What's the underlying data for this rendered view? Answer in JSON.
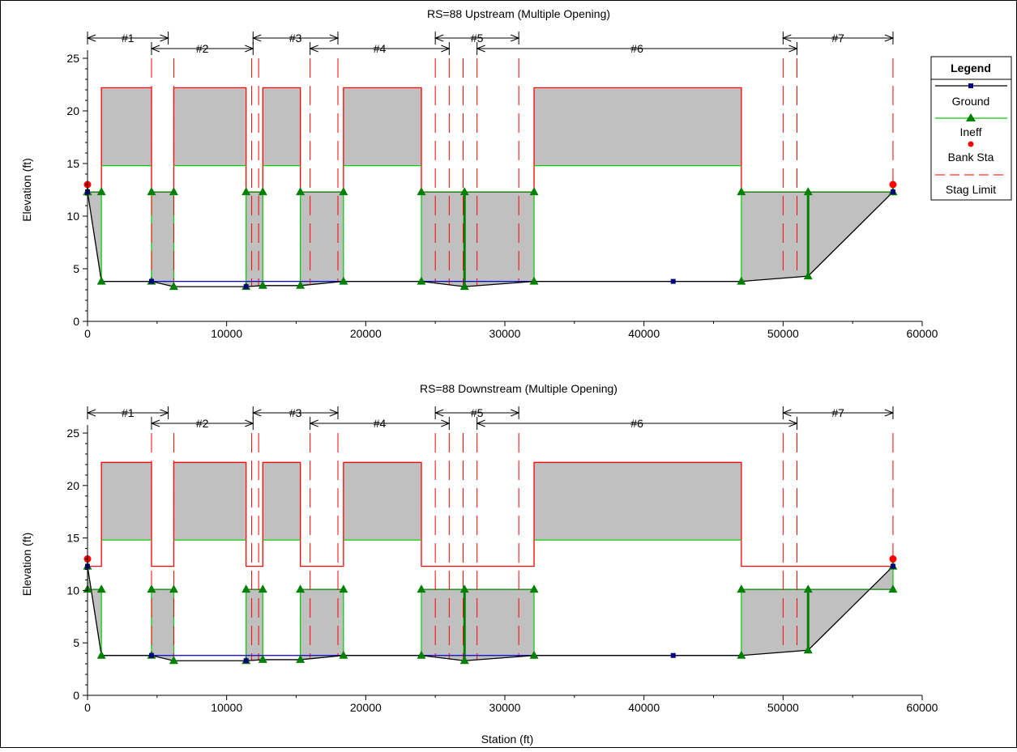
{
  "xlabel": "Station (ft)",
  "legend": {
    "title": "Legend",
    "entries": [
      "Ground",
      "Ineff",
      "Bank Sta",
      "Stag Limit"
    ]
  },
  "colors": {
    "ground": "#000000",
    "ground_marker": "#000080",
    "water_line": "#0000cc",
    "ineff": "#00cc00",
    "ineff_marker": "#008000",
    "bank": "#ff0000",
    "stag_limit": "#ff0000",
    "deck": "#ff0000",
    "fill": "#c0c0c0"
  },
  "chart_data": [
    {
      "type": "line",
      "title": "RS=88     Upstream  (Multiple Opening)",
      "ylabel": "Elevation (ft)",
      "xlim": [
        0,
        60000
      ],
      "ylim": [
        0,
        25
      ],
      "x_ticks": [
        0,
        10000,
        20000,
        30000,
        40000,
        50000,
        60000
      ],
      "y_ticks": [
        0,
        5,
        10,
        15,
        20,
        25
      ],
      "deck_high": 22.2,
      "deck_low_chord": 14.8,
      "ground": {
        "x": [
          0,
          1000,
          4600,
          6200,
          11400,
          12600,
          15300,
          18400,
          24000,
          27100,
          32100,
          42100,
          47000,
          51800,
          57900
        ],
        "y": [
          12.3,
          3.8,
          3.8,
          3.3,
          3.3,
          3.4,
          3.4,
          3.8,
          3.8,
          3.3,
          3.8,
          3.8,
          3.8,
          4.3,
          12.3
        ]
      },
      "ground_markers": [
        0,
        4600,
        11400,
        42100,
        57900
      ],
      "water_line": {
        "x": [
          1000,
          47000
        ],
        "y": 3.8
      },
      "deck_segments": [
        [
          1000,
          4600
        ],
        [
          6200,
          11400
        ],
        [
          12600,
          15300
        ],
        [
          18400,
          24000
        ],
        [
          32100,
          47000
        ]
      ],
      "ineff_level": 12.3,
      "ineff_stations": [
        0,
        1000,
        4600,
        6200,
        11400,
        12600,
        15300,
        18400,
        24000,
        27100,
        32100,
        47000,
        51800,
        57900
      ],
      "piers": [
        27100,
        51800
      ],
      "bank_stations": [
        {
          "x": 0,
          "y": 13.0
        },
        {
          "x": 57900,
          "y": 13.0
        }
      ],
      "stag_limits": [
        4600,
        6200,
        11800,
        12300,
        16000,
        18000,
        25000,
        26000,
        27000,
        28000,
        31000,
        50000,
        51000,
        57900
      ],
      "openings": [
        {
          "label": "#1",
          "x0": 0,
          "x1": 5800,
          "row": 1
        },
        {
          "label": "#2",
          "x0": 4600,
          "x1": 11900,
          "row": 2
        },
        {
          "label": "#3",
          "x0": 11900,
          "x1": 18000,
          "row": 1
        },
        {
          "label": "#4",
          "x0": 16000,
          "x1": 26000,
          "row": 2
        },
        {
          "label": "#5",
          "x0": 25000,
          "x1": 31000,
          "row": 1
        },
        {
          "label": "#6",
          "x0": 28000,
          "x1": 51000,
          "row": 2
        },
        {
          "label": "#7",
          "x0": 50000,
          "x1": 57900,
          "row": 1
        }
      ]
    },
    {
      "type": "line",
      "title": "RS=88     Downstream  (Multiple Opening)",
      "ylabel": "Elevation (ft)",
      "xlim": [
        0,
        60000
      ],
      "ylim": [
        0,
        25
      ],
      "x_ticks": [
        0,
        10000,
        20000,
        30000,
        40000,
        50000,
        60000
      ],
      "y_ticks": [
        0,
        5,
        10,
        15,
        20,
        25
      ],
      "deck_high": 22.2,
      "deck_low_chord": 14.8,
      "ground": {
        "x": [
          0,
          1000,
          4600,
          6200,
          11400,
          12600,
          15300,
          18400,
          24000,
          27100,
          32100,
          42100,
          47000,
          51800,
          57900
        ],
        "y": [
          12.3,
          3.8,
          3.8,
          3.3,
          3.3,
          3.4,
          3.4,
          3.8,
          3.8,
          3.3,
          3.8,
          3.8,
          3.8,
          4.3,
          12.3
        ]
      },
      "ground_markers": [
        0,
        4600,
        11400,
        42100,
        57900
      ],
      "water_line": {
        "x": [
          1000,
          47000
        ],
        "y": 3.8
      },
      "deck_segments": [
        [
          1000,
          4600
        ],
        [
          6200,
          11400
        ],
        [
          12600,
          15300
        ],
        [
          18400,
          24000
        ],
        [
          32100,
          47000
        ]
      ],
      "ineff_level": 10.1,
      "ineff_stations": [
        0,
        1000,
        4600,
        6200,
        11400,
        12600,
        15300,
        18400,
        24000,
        27100,
        32100,
        47000,
        51800,
        57900
      ],
      "piers": [
        27100,
        51800
      ],
      "bank_stations": [
        {
          "x": 0,
          "y": 13.0
        },
        {
          "x": 57900,
          "y": 13.0
        }
      ],
      "stag_limits": [
        4600,
        6200,
        11800,
        12300,
        16000,
        18000,
        25000,
        26000,
        27000,
        28000,
        31000,
        50000,
        51000,
        57900
      ],
      "openings": [
        {
          "label": "#1",
          "x0": 0,
          "x1": 5800,
          "row": 1
        },
        {
          "label": "#2",
          "x0": 4600,
          "x1": 11900,
          "row": 2
        },
        {
          "label": "#3",
          "x0": 11900,
          "x1": 18000,
          "row": 1
        },
        {
          "label": "#4",
          "x0": 16000,
          "x1": 26000,
          "row": 2
        },
        {
          "label": "#5",
          "x0": 25000,
          "x1": 31000,
          "row": 1
        },
        {
          "label": "#6",
          "x0": 28000,
          "x1": 51000,
          "row": 2
        },
        {
          "label": "#7",
          "x0": 50000,
          "x1": 57900,
          "row": 1
        }
      ]
    }
  ]
}
